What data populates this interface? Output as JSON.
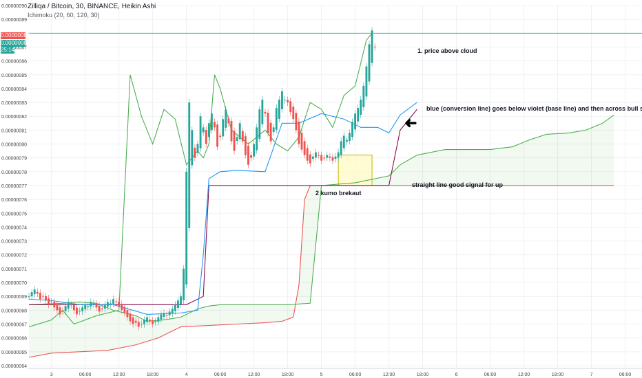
{
  "header": {
    "title": "Zilliqa / Bitcoin, 30, BINANCE, Heikin Ashi",
    "indicator": "Ichimoku (20, 60, 120, 30)"
  },
  "price_tags": [
    {
      "label": "0.00000088",
      "color": "#ef5350"
    },
    {
      "label": "0.00000088",
      "color": "#26a69a"
    },
    {
      "label": "25:14",
      "color": "#26a69a"
    }
  ],
  "annotations": {
    "note1": "1. price above cloud",
    "note2": "blue (conversion line) goes below violet (base line)  and then across bull signal",
    "note3": "straight line good signal for up",
    "note4": "2 kumo brekaut",
    "arrow": "➜"
  },
  "colors": {
    "up": "#26a69a",
    "down": "#ef5350",
    "conversion": "#2196f3",
    "base": "#880e4f",
    "lagging": "#4caf50",
    "span_a": "#4caf50",
    "span_b": "#ef5350",
    "grid": "#eef0f3",
    "highlight": "#fff9c4",
    "highlight_border": "#c8b400",
    "level_line": "#c2185b",
    "price_line": "#26a69a"
  },
  "chart_data": {
    "type": "candlestick",
    "y_axis_side": "left",
    "ylim": [
      6.38e-07,
      9e-07
    ],
    "y_ticks": [
      "0.00000090",
      "0.00000089",
      "0.00000087",
      "0.00000086",
      "0.00000085",
      "0.00000084",
      "0.00000083",
      "0.00000082",
      "0.00000081",
      "0.00000080",
      "0.00000079",
      "0.00000078",
      "0.00000077",
      "0.00000076",
      "0.00000075",
      "0.00000074",
      "0.00000073",
      "0.00000072",
      "0.00000071",
      "0.00000070",
      "0.00000069",
      "0.00000068",
      "0.00000067",
      "0.00000066",
      "0.00000065",
      "0.00000064"
    ],
    "x_ticks": [
      "3",
      "06:00",
      "12:00",
      "18:00",
      "4",
      "06:00",
      "12:00",
      "18:00",
      "5",
      "06:00",
      "12:00",
      "18:00",
      "6",
      "06:00",
      "12:00",
      "18:00",
      "7",
      "06:00"
    ],
    "x_tick_times": [
      0,
      12,
      24,
      36,
      48,
      60,
      72,
      84,
      96,
      108,
      120,
      132,
      144,
      156,
      168,
      180,
      192,
      204
    ],
    "x_range": [
      -8.5,
      210
    ],
    "last_price": 8.8e-07,
    "candles": {
      "start_time": -8,
      "step": 1,
      "close": [
        6.9e-07,
        6.93e-07,
        6.95e-07,
        6.92e-07,
        6.88e-07,
        6.9e-07,
        6.87e-07,
        6.84e-07,
        6.86e-07,
        6.82e-07,
        6.8e-07,
        6.77e-07,
        6.79e-07,
        6.83e-07,
        6.86e-07,
        6.84e-07,
        6.8e-07,
        6.77e-07,
        6.79e-07,
        6.82e-07,
        6.84e-07,
        6.83e-07,
        6.86e-07,
        6.85e-07,
        6.82e-07,
        6.79e-07,
        6.81e-07,
        6.84e-07,
        6.86e-07,
        6.85e-07,
        6.88e-07,
        6.86e-07,
        6.83e-07,
        6.8e-07,
        6.78e-07,
        6.75e-07,
        6.72e-07,
        6.7e-07,
        6.71e-07,
        6.68e-07,
        6.7e-07,
        6.73e-07,
        6.75e-07,
        6.72e-07,
        6.7e-07,
        6.72e-07,
        6.75e-07,
        6.77e-07,
        6.78e-07,
        6.76e-07,
        6.79e-07,
        6.81e-07,
        6.84e-07,
        6.87e-07,
        6.9e-07,
        7.1e-07,
        7.8e-07,
        8.3e-07,
        8.1e-07,
        7.9e-07,
        8e-07,
        8.2e-07,
        8.12e-07,
        8e-07,
        8.15e-07,
        8.22e-07,
        8.12e-07,
        7.98e-07,
        8.05e-07,
        8.18e-07,
        8.25e-07,
        8.15e-07,
        8.02e-07,
        7.95e-07,
        8.05e-07,
        8.15e-07,
        8.02e-07,
        7.92e-07,
        7.85e-07,
        7.9e-07,
        8e-07,
        8.12e-07,
        8.25e-07,
        8.32e-07,
        8.22e-07,
        8.08e-07,
        8.02e-07,
        8.12e-07,
        8.26e-07,
        8.32e-07,
        8.38e-07,
        8.32e-07,
        8.3e-07,
        8.23e-07,
        8.18e-07,
        8.1e-07,
        8e-07,
        7.96e-07,
        7.92e-07,
        7.88e-07,
        7.86e-07,
        7.91e-07,
        7.94e-07,
        7.92e-07,
        7.88e-07,
        7.9e-07,
        7.92e-07,
        7.9e-07,
        7.88e-07,
        7.91e-07,
        7.94e-07,
        8.02e-07,
        8.06e-07,
        8.03e-07,
        8.08e-07,
        8.16e-07,
        8.22e-07,
        8.26e-07,
        8.32e-07,
        8.42e-07,
        8.56e-07,
        8.72e-07,
        8.82e-07,
        8.7e-07
      ]
    },
    "conversion_line": {
      "t": [
        -8,
        0,
        10,
        22,
        34,
        46,
        52,
        54,
        56,
        60,
        66,
        76,
        82,
        88,
        96,
        104,
        110,
        116,
        120,
        124,
        130
      ],
      "y": [
        6.88e-07,
        6.87e-07,
        6.84e-07,
        6.84e-07,
        6.77e-07,
        6.78e-07,
        6.8e-07,
        7.2e-07,
        7.75e-07,
        7.8e-07,
        7.81e-07,
        7.8e-07,
        8.15e-07,
        8.15e-07,
        8.22e-07,
        8.18e-07,
        8.12e-07,
        8.12e-07,
        8.08e-07,
        8.21e-07,
        8.3e-07
      ]
    },
    "base_line": {
      "t": [
        -8,
        24,
        48,
        54,
        56,
        120,
        124,
        130
      ],
      "y": [
        6.84e-07,
        6.84e-07,
        6.84e-07,
        6.9e-07,
        7.7e-07,
        7.7e-07,
        8.1e-07,
        8.25e-07
      ]
    },
    "lagging_span": {
      "t": [
        -8,
        0,
        4,
        8,
        16,
        24,
        26,
        28,
        32,
        36,
        40,
        44,
        48,
        52,
        54,
        56,
        58,
        60,
        64,
        70,
        76,
        80,
        84,
        88,
        92,
        96,
        100,
        104,
        108,
        112,
        114
      ],
      "y": [
        6.68e-07,
        6.73e-07,
        6.8e-07,
        6.7e-07,
        6.76e-07,
        6.8e-07,
        7.65e-07,
        8.5e-07,
        8.2e-07,
        8e-07,
        8.25e-07,
        8.18e-07,
        7.85e-07,
        7.95e-07,
        7.9e-07,
        8e-07,
        8.5e-07,
        8.4e-07,
        8.1e-07,
        8e-07,
        8.1e-07,
        8e-07,
        7.95e-07,
        8.05e-07,
        8.3e-07,
        8.25e-07,
        8.12e-07,
        8.35e-07,
        8.42e-07,
        8.75e-07,
        8.8e-07
      ]
    },
    "span_a": {
      "t": [
        -8,
        4,
        10,
        16,
        22,
        30,
        34,
        40,
        46,
        52,
        56,
        60,
        66,
        72,
        84,
        92,
        96,
        102,
        108,
        120,
        124,
        130,
        140,
        150,
        156,
        164,
        170,
        176,
        184,
        190,
        196,
        200
      ],
      "y": [
        6.84e-07,
        6.85e-07,
        6.86e-07,
        6.85e-07,
        6.8e-07,
        6.76e-07,
        6.72e-07,
        6.73e-07,
        6.75e-07,
        6.81e-07,
        6.83e-07,
        6.84e-07,
        6.84e-07,
        6.84e-07,
        6.84e-07,
        6.85e-07,
        7.7e-07,
        7.71e-07,
        7.72e-07,
        7.77e-07,
        7.85e-07,
        7.92e-07,
        7.96e-07,
        7.96e-07,
        7.96e-07,
        7.98e-07,
        8.03e-07,
        8.07e-07,
        8.08e-07,
        8.1e-07,
        8.15e-07,
        8.21e-07
      ]
    },
    "span_b": {
      "t": [
        -8,
        0,
        20,
        30,
        38,
        46,
        56,
        66,
        76,
        82,
        86,
        88,
        90,
        92,
        200
      ],
      "y": [
        6.46e-07,
        6.49e-07,
        6.51e-07,
        6.55e-07,
        6.6e-07,
        6.68e-07,
        6.69e-07,
        6.7e-07,
        6.71e-07,
        6.72e-07,
        6.75e-07,
        6.98e-07,
        7.6e-07,
        7.7e-07,
        7.7e-07
      ]
    },
    "level_lines": [
      7.7e-07
    ],
    "highlight_box": {
      "t": [
        102,
        114
      ],
      "y": [
        7.7e-07,
        7.92e-07
      ]
    }
  }
}
